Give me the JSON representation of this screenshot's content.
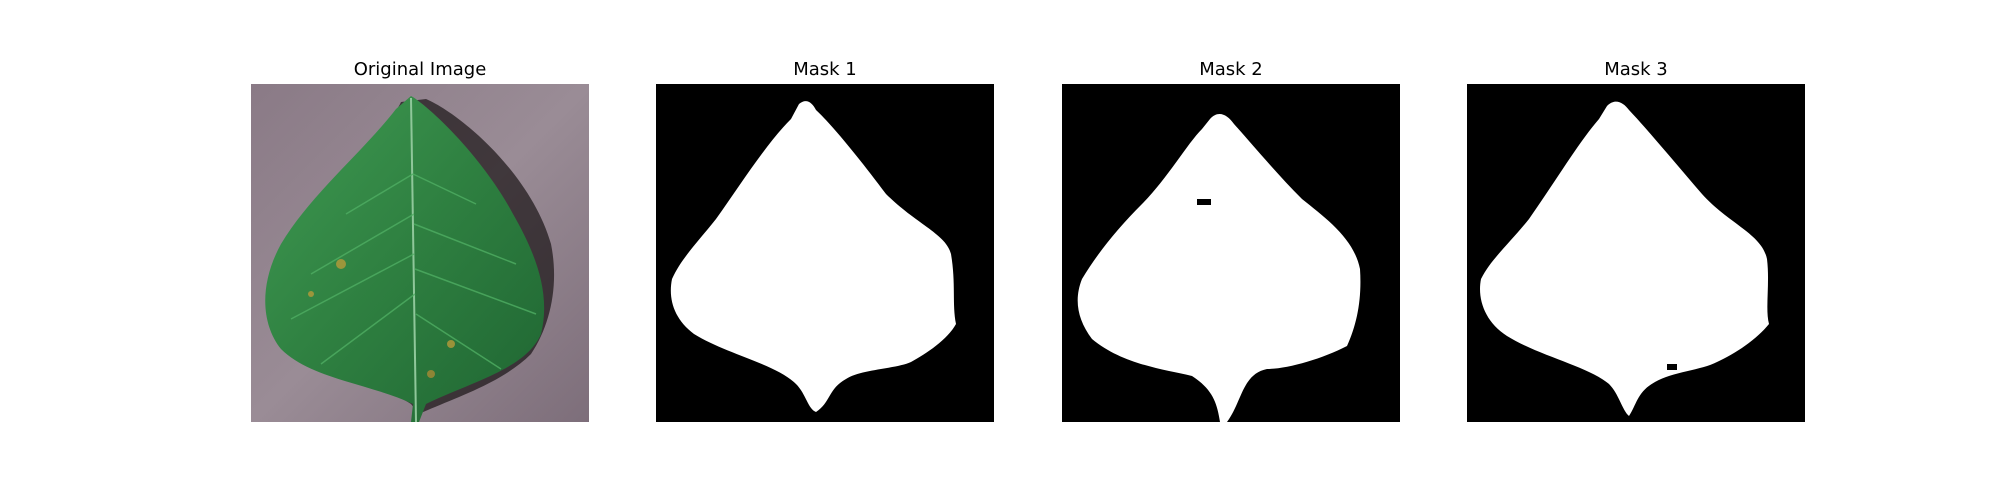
{
  "figure": {
    "panels": [
      {
        "title": "Original Image",
        "kind": "photo",
        "subject": "leaf-photo"
      },
      {
        "title": "Mask 1",
        "kind": "mask",
        "subject": "leaf-mask"
      },
      {
        "title": "Mask 2",
        "kind": "mask",
        "subject": "leaf-mask"
      },
      {
        "title": "Mask 3",
        "kind": "mask",
        "subject": "leaf-mask"
      }
    ],
    "colors": {
      "background": "#ffffff",
      "mask_foreground": "#ffffff",
      "mask_background": "#000000",
      "leaf_green": "#2f8a45",
      "ground": "#8c7c88"
    }
  }
}
